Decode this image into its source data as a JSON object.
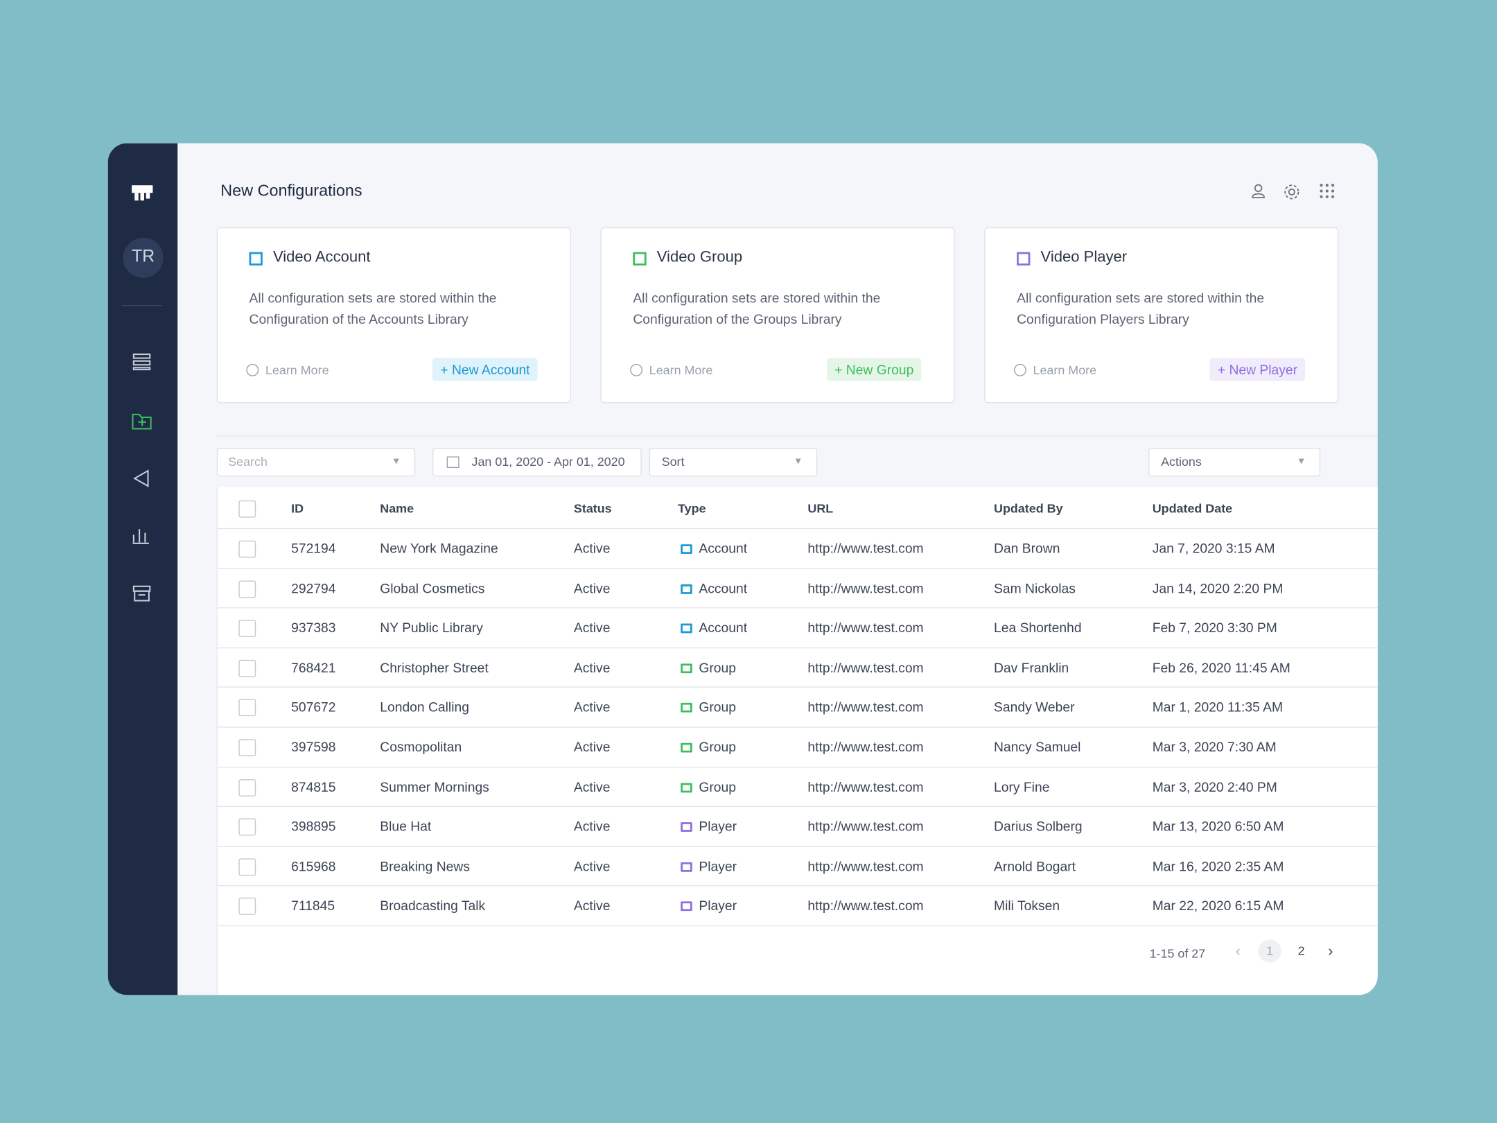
{
  "header": {
    "title": "New Configurations"
  },
  "sidebar": {
    "avatar": "TR"
  },
  "cards": [
    {
      "title": "Video Account",
      "description": "All configuration sets are stored within the Configuration of the Accounts Library",
      "link": "Learn More",
      "button": "+ New Account",
      "color": "#1a9ad6"
    },
    {
      "title": "Video Group",
      "description": "All configuration sets are stored within the Configuration of the Groups Library",
      "link": "Learn More",
      "button": "+ New Group",
      "color": "#3cbf5a"
    },
    {
      "title": "Video Player",
      "description": "All configuration sets are stored within the Configuration Players Library",
      "link": "Learn More",
      "button": "+ New Player",
      "color": "#8c6fe0"
    }
  ],
  "toolbar": {
    "search": "Search",
    "date_range": "Jan 01, 2020 - Apr 01, 2020",
    "sort": "Sort",
    "actions": "Actions"
  },
  "table": {
    "columns": [
      "ID",
      "Name",
      "Status",
      "Type",
      "URL",
      "Updated By",
      "Updated Date"
    ],
    "rows": [
      [
        "572194",
        "New York Magazine",
        "Active",
        "Account",
        "http://www.test.com",
        "Dan Brown",
        "Jan 7, 2020 3:15 AM"
      ],
      [
        "292794",
        "Global Cosmetics",
        "Active",
        "Account",
        "http://www.test.com",
        "Sam Nickolas",
        "Jan 14, 2020 2:20 PM"
      ],
      [
        "937383",
        "NY Public Library",
        "Active",
        "Account",
        "http://www.test.com",
        "Lea Shortenhd",
        "Feb 7, 2020 3:30 PM"
      ],
      [
        "768421",
        "Christopher Street",
        "Active",
        "Group",
        "http://www.test.com",
        "Dav Franklin",
        "Feb 26, 2020 11:45 AM"
      ],
      [
        "507672",
        "London Calling",
        "Active",
        "Group",
        "http://www.test.com",
        "Sandy Weber",
        "Mar 1, 2020 11:35 AM"
      ],
      [
        "397598",
        "Cosmopolitan",
        "Active",
        "Group",
        "http://www.test.com",
        "Nancy Samuel",
        "Mar 3, 2020 7:30 AM"
      ],
      [
        "874815",
        "Summer Mornings",
        "Active",
        "Group",
        "http://www.test.com",
        "Lory Fine",
        "Mar 3, 2020 2:40 PM"
      ],
      [
        "398895",
        "Blue Hat",
        "Active",
        "Player",
        "http://www.test.com",
        "Darius Solberg",
        "Mar 13, 2020 6:50 AM"
      ],
      [
        "615968",
        "Breaking News",
        "Active",
        "Player",
        "http://www.test.com",
        "Arnold Bogart",
        "Mar 16, 2020 2:35 AM"
      ],
      [
        "711845",
        "Broadcasting Talk",
        "Active",
        "Player",
        "http://www.test.com",
        "Mili Toksen",
        "Mar 22, 2020 6:15 AM"
      ]
    ]
  },
  "pagination": {
    "range": "1-15 of 27",
    "pages": [
      "1",
      "2"
    ]
  }
}
